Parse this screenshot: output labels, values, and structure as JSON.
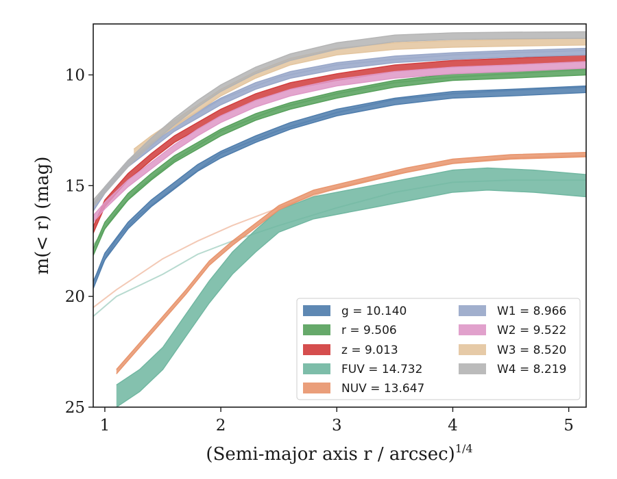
{
  "chart_data": {
    "type": "line",
    "xlabel_main": "(Semi-major axis r / arcsec)",
    "xlabel_exp": "1/4",
    "ylabel": "m(< r) (mag)",
    "xlim": [
      0.9,
      5.15
    ],
    "ylim": [
      25,
      7.7
    ],
    "y_inverted": true,
    "xticks": [
      1,
      2,
      3,
      4,
      5
    ],
    "yticks": [
      10,
      15,
      20,
      25
    ],
    "grid": false,
    "legend_position": "lower-right",
    "legend_ncol": 2,
    "series": [
      {
        "name": "g = 10.140",
        "color": "#4c7bab",
        "band": 0.15,
        "points": [
          [
            0.9,
            19.5
          ],
          [
            1.0,
            18.2
          ],
          [
            1.2,
            16.8
          ],
          [
            1.4,
            15.8
          ],
          [
            1.6,
            15.0
          ],
          [
            1.8,
            14.2
          ],
          [
            2.0,
            13.6
          ],
          [
            2.3,
            12.9
          ],
          [
            2.6,
            12.3
          ],
          [
            3.0,
            11.7
          ],
          [
            3.5,
            11.2
          ],
          [
            4.0,
            10.9
          ],
          [
            4.5,
            10.8
          ],
          [
            5.15,
            10.65
          ]
        ]
      },
      {
        "name": "r = 9.506",
        "color": "#55a05a",
        "band": 0.15,
        "points": [
          [
            0.9,
            18.0
          ],
          [
            1.0,
            16.8
          ],
          [
            1.2,
            15.5
          ],
          [
            1.4,
            14.6
          ],
          [
            1.6,
            13.8
          ],
          [
            1.8,
            13.2
          ],
          [
            2.0,
            12.6
          ],
          [
            2.3,
            11.9
          ],
          [
            2.6,
            11.4
          ],
          [
            3.0,
            10.9
          ],
          [
            3.5,
            10.4
          ],
          [
            4.0,
            10.1
          ],
          [
            4.5,
            10.0
          ],
          [
            5.15,
            9.85
          ]
        ]
      },
      {
        "name": "z = 9.013",
        "color": "#d03b3b",
        "band": 0.15,
        "points": [
          [
            0.9,
            17.0
          ],
          [
            1.0,
            15.8
          ],
          [
            1.2,
            14.6
          ],
          [
            1.4,
            13.7
          ],
          [
            1.6,
            12.9
          ],
          [
            1.8,
            12.3
          ],
          [
            2.0,
            11.7
          ],
          [
            2.3,
            11.0
          ],
          [
            2.6,
            10.5
          ],
          [
            3.0,
            10.1
          ],
          [
            3.5,
            9.7
          ],
          [
            4.0,
            9.5
          ],
          [
            4.5,
            9.4
          ],
          [
            5.15,
            9.25
          ]
        ]
      },
      {
        "name": "FUV = 14.732",
        "color": "#6fb6a0",
        "band": 0.5,
        "points": [
          [
            1.1,
            24.5
          ],
          [
            1.3,
            23.8
          ],
          [
            1.5,
            22.8
          ],
          [
            1.7,
            21.3
          ],
          [
            1.9,
            19.8
          ],
          [
            2.1,
            18.5
          ],
          [
            2.3,
            17.5
          ],
          [
            2.5,
            16.6
          ],
          [
            2.8,
            16.0
          ],
          [
            3.2,
            15.6
          ],
          [
            3.6,
            15.2
          ],
          [
            4.0,
            14.8
          ],
          [
            4.3,
            14.7
          ],
          [
            4.7,
            14.8
          ],
          [
            5.15,
            15.0
          ]
        ]
      },
      {
        "name": "NUV = 13.647",
        "color": "#e8946c",
        "band": 0.1,
        "points": [
          [
            1.1,
            23.4
          ],
          [
            1.3,
            22.2
          ],
          [
            1.5,
            21.0
          ],
          [
            1.7,
            19.8
          ],
          [
            1.9,
            18.5
          ],
          [
            2.1,
            17.6
          ],
          [
            2.3,
            16.8
          ],
          [
            2.5,
            16.0
          ],
          [
            2.8,
            15.3
          ],
          [
            3.2,
            14.8
          ],
          [
            3.6,
            14.3
          ],
          [
            4.0,
            13.9
          ],
          [
            4.5,
            13.7
          ],
          [
            5.15,
            13.6
          ]
        ]
      },
      {
        "name": "W1 = 8.966",
        "color": "#97a6c8",
        "band": 0.15,
        "points": [
          [
            0.9,
            16.0
          ],
          [
            1.0,
            15.2
          ],
          [
            1.2,
            14.0
          ],
          [
            1.4,
            13.2
          ],
          [
            1.6,
            12.4
          ],
          [
            1.8,
            11.8
          ],
          [
            2.0,
            11.2
          ],
          [
            2.3,
            10.5
          ],
          [
            2.6,
            10.0
          ],
          [
            3.0,
            9.6
          ],
          [
            3.5,
            9.3
          ],
          [
            4.0,
            9.15
          ],
          [
            4.5,
            9.05
          ],
          [
            5.15,
            8.95
          ]
        ]
      },
      {
        "name": "W2 = 9.522",
        "color": "#de97c6",
        "band": 0.15,
        "points": [
          [
            0.9,
            16.5
          ],
          [
            1.0,
            15.9
          ],
          [
            1.2,
            14.9
          ],
          [
            1.4,
            14.1
          ],
          [
            1.6,
            13.3
          ],
          [
            1.8,
            12.6
          ],
          [
            2.0,
            12.0
          ],
          [
            2.3,
            11.3
          ],
          [
            2.6,
            10.8
          ],
          [
            3.0,
            10.35
          ],
          [
            3.5,
            10.0
          ],
          [
            4.0,
            9.8
          ],
          [
            4.5,
            9.7
          ],
          [
            5.15,
            9.55
          ]
        ]
      },
      {
        "name": "W3 = 8.520",
        "color": "#e3c49d",
        "band": 0.15,
        "points": [
          [
            1.25,
            13.5
          ],
          [
            1.4,
            12.9
          ],
          [
            1.6,
            12.2
          ],
          [
            1.8,
            11.5
          ],
          [
            2.0,
            10.8
          ],
          [
            2.3,
            10.0
          ],
          [
            2.6,
            9.4
          ],
          [
            3.0,
            8.95
          ],
          [
            3.5,
            8.7
          ],
          [
            4.0,
            8.6
          ],
          [
            4.5,
            8.55
          ],
          [
            5.15,
            8.5
          ]
        ]
      },
      {
        "name": "W4 = 8.219",
        "color": "#b4b4b4",
        "band": 0.15,
        "points": [
          [
            0.9,
            15.8
          ],
          [
            1.0,
            15.2
          ],
          [
            1.2,
            14.0
          ],
          [
            1.4,
            13.0
          ],
          [
            1.6,
            12.1
          ],
          [
            1.8,
            11.3
          ],
          [
            2.0,
            10.6
          ],
          [
            2.3,
            9.8
          ],
          [
            2.6,
            9.2
          ],
          [
            3.0,
            8.7
          ],
          [
            3.5,
            8.35
          ],
          [
            4.0,
            8.25
          ],
          [
            4.5,
            8.22
          ],
          [
            5.15,
            8.2
          ]
        ]
      }
    ],
    "faded_series": [
      {
        "color": "#6fb6a0",
        "points": [
          [
            0.9,
            20.9
          ],
          [
            1.1,
            20.0
          ],
          [
            1.3,
            19.5
          ],
          [
            1.5,
            19.0
          ],
          [
            1.8,
            18.1
          ],
          [
            2.1,
            17.5
          ],
          [
            2.5,
            16.8
          ],
          [
            3.0,
            16.0
          ],
          [
            3.5,
            15.3
          ],
          [
            4.0,
            14.85
          ],
          [
            4.5,
            14.75
          ],
          [
            5.15,
            14.75
          ]
        ]
      },
      {
        "color": "#e8946c",
        "points": [
          [
            0.9,
            20.5
          ],
          [
            1.1,
            19.7
          ],
          [
            1.3,
            19.0
          ],
          [
            1.5,
            18.3
          ],
          [
            1.8,
            17.5
          ],
          [
            2.1,
            16.8
          ],
          [
            2.5,
            16.0
          ],
          [
            3.0,
            15.1
          ],
          [
            3.5,
            14.5
          ],
          [
            4.0,
            14.0
          ],
          [
            4.5,
            13.75
          ],
          [
            5.15,
            13.65
          ]
        ]
      },
      {
        "color": "#4c7bab",
        "points": [
          [
            0.9,
            19.3
          ],
          [
            1.1,
            17.4
          ],
          [
            1.3,
            16.3
          ],
          [
            1.6,
            15.1
          ],
          [
            2.0,
            13.55
          ],
          [
            2.5,
            12.5
          ],
          [
            3.0,
            11.7
          ],
          [
            3.5,
            11.1
          ],
          [
            4.0,
            10.85
          ],
          [
            4.5,
            10.7
          ],
          [
            5.15,
            10.55
          ]
        ]
      },
      {
        "color": "#55a05a",
        "points": [
          [
            0.9,
            17.7
          ],
          [
            1.1,
            16.2
          ],
          [
            1.3,
            15.1
          ],
          [
            1.6,
            13.85
          ],
          [
            2.0,
            12.55
          ],
          [
            2.5,
            11.5
          ],
          [
            3.0,
            10.85
          ],
          [
            3.5,
            10.35
          ],
          [
            4.0,
            10.1
          ],
          [
            4.5,
            9.95
          ],
          [
            5.15,
            9.75
          ]
        ]
      },
      {
        "color": "#97a6c8",
        "points": [
          [
            0.9,
            15.9
          ],
          [
            1.1,
            14.7
          ],
          [
            1.3,
            13.6
          ],
          [
            1.6,
            12.35
          ],
          [
            2.0,
            11.1
          ],
          [
            2.5,
            10.1
          ],
          [
            3.0,
            9.55
          ],
          [
            3.5,
            9.3
          ],
          [
            4.0,
            9.1
          ],
          [
            4.5,
            9.0
          ],
          [
            5.15,
            8.9
          ]
        ]
      }
    ]
  }
}
